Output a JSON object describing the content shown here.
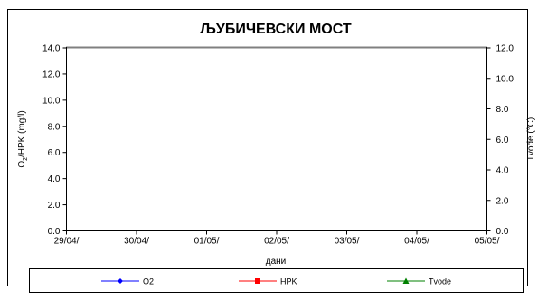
{
  "chart_data": {
    "type": "line",
    "title": "ЉУБИЧЕВСКИ МОСТ",
    "xlabel": "дани",
    "ylabel_main": "O",
    "ylabel_sub": "2",
    "ylabel_rest": "/HPK (mg/l)",
    "y2label": "Tvode (°C)",
    "x_tick_labels": [
      "29/04/",
      "30/04/",
      "01/05/",
      "02/05/",
      "03/05/",
      "04/05/",
      "05/05/"
    ],
    "y_tick_labels": [
      "0.0",
      "2.0",
      "4.0",
      "6.0",
      "8.0",
      "10.0",
      "12.0",
      "14.0"
    ],
    "y2_tick_labels": [
      "0.0",
      "2.0",
      "4.0",
      "6.0",
      "8.0",
      "10.0",
      "12.0"
    ],
    "ylim": [
      0,
      14
    ],
    "y2lim": [
      0,
      12
    ],
    "grid": false,
    "legend_position": "bottom",
    "series": [
      {
        "name": "O2",
        "color": "#0000ff",
        "marker": "diamond",
        "axis": "left",
        "values": []
      },
      {
        "name": "HPK",
        "color": "#ff0000",
        "marker": "square",
        "axis": "left",
        "values": []
      },
      {
        "name": "Tvode",
        "color": "#008000",
        "marker": "triangle",
        "axis": "right",
        "values": []
      }
    ]
  }
}
